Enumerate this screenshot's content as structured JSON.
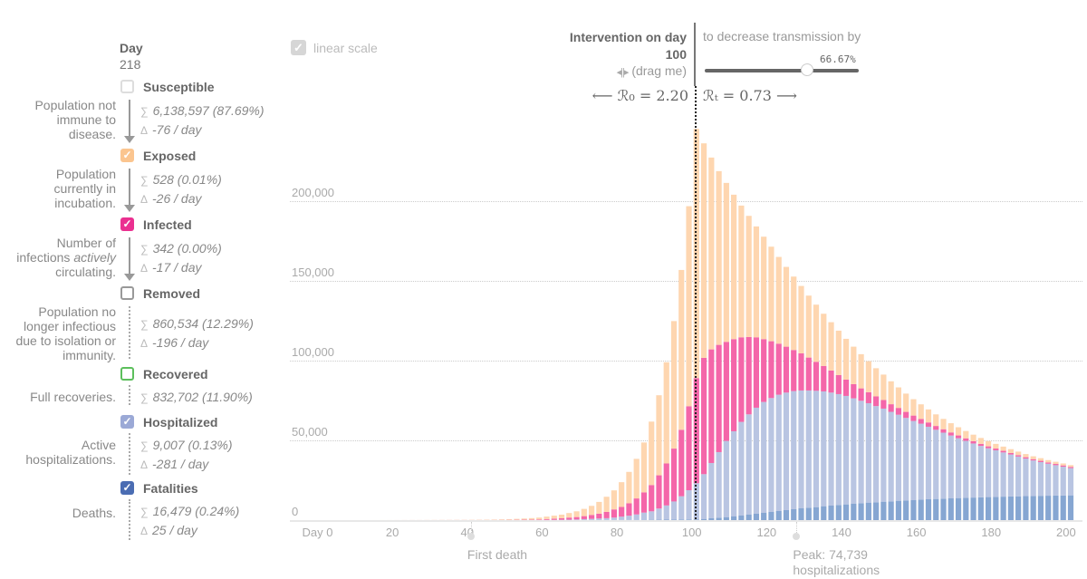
{
  "day": {
    "label": "Day",
    "value": "218"
  },
  "compartments": [
    {
      "name": "Susceptible",
      "checked": false,
      "color": "#dddddd",
      "desc": [
        "Population not",
        "immune to",
        "disease."
      ],
      "sum": "6,138,597 (87.69%)",
      "delta": "-76 / day"
    },
    {
      "name": "Exposed",
      "checked": true,
      "color": "#fbc58f",
      "desc": [
        "Population",
        "currently in",
        "incubation."
      ],
      "sum": "528 (0.01%)",
      "delta": "-26 / day"
    },
    {
      "name": "Infected",
      "checked": true,
      "color": "#ea3090",
      "desc_pre": "infections ",
      "desc_em": "actively",
      "desc": [
        "Number of",
        "",
        "circulating."
      ],
      "sum": "342 (0.00%)",
      "delta": "-17 / day"
    },
    {
      "name": "Removed",
      "checked": false,
      "color": "#999999",
      "desc": [
        "Population no",
        "longer infectious",
        "due to isolation or",
        "immunity."
      ],
      "sum": "860,534 (12.29%)",
      "delta": "-196 / day"
    },
    {
      "name": "Recovered",
      "checked": false,
      "color": "#5cbf5c",
      "desc": [
        "Full recoveries."
      ],
      "sum": "832,702 (11.90%)"
    },
    {
      "name": "Hospitalized",
      "checked": true,
      "color": "#9ba9d6",
      "desc": [
        "Active",
        "hospitalizations."
      ],
      "sum": "9,007 (0.13%)",
      "delta": "-281 / day"
    },
    {
      "name": "Fatalities",
      "checked": true,
      "color": "#4b6db3",
      "desc": [
        "Deaths."
      ],
      "sum": "16,479 (0.24%)",
      "delta": "25 / day"
    }
  ],
  "symbols": {
    "sum": "∑",
    "delta": "Δ",
    "check": "✓"
  },
  "scale_toggle": {
    "label": "linear scale",
    "checked": true
  },
  "intervention": {
    "title": "Intervention on day",
    "day": "100",
    "drag_hint": "(drag me)",
    "decrease_label": "to decrease transmission by",
    "decrease_value": "66.67%",
    "decrease_fraction": 0.6667,
    "r0_text": "⟵ ℛ₀ = 2.20",
    "rt_text": "ℛₜ = 0.73 ⟶"
  },
  "annotations": {
    "first_death": {
      "day": 41,
      "text": "First death"
    },
    "peak": {
      "day": 128,
      "line1": "Peak: 74,739",
      "line2": "hospitalizations"
    }
  },
  "chart_data": {
    "type": "bar",
    "stacked": true,
    "xlabel": "",
    "ylabel": "",
    "x_tick_labels": [
      "Day 0",
      "20",
      "40",
      "60",
      "80",
      "100",
      "120",
      "140",
      "160",
      "180",
      "200"
    ],
    "x_ticks": [
      0,
      20,
      40,
      60,
      80,
      100,
      120,
      140,
      160,
      180,
      200
    ],
    "y_tick_labels": [
      "0",
      "50,000",
      "100,000",
      "150,000",
      "200,000"
    ],
    "y_ticks": [
      0,
      50000,
      100000,
      150000,
      200000
    ],
    "xlim": [
      0,
      200
    ],
    "ylim": [
      0,
      250000
    ],
    "grid": true,
    "x": [
      0,
      2,
      4,
      6,
      8,
      10,
      12,
      14,
      16,
      18,
      20,
      22,
      24,
      26,
      28,
      30,
      32,
      34,
      36,
      38,
      40,
      42,
      44,
      46,
      48,
      50,
      52,
      54,
      56,
      58,
      60,
      62,
      64,
      66,
      68,
      70,
      72,
      74,
      76,
      78,
      80,
      82,
      84,
      86,
      88,
      90,
      92,
      94,
      96,
      98,
      100,
      102,
      104,
      106,
      108,
      110,
      112,
      114,
      116,
      118,
      120,
      122,
      124,
      126,
      128,
      130,
      132,
      134,
      136,
      138,
      140,
      142,
      144,
      146,
      148,
      150,
      152,
      154,
      156,
      158,
      160,
      162,
      164,
      166,
      168,
      170,
      172,
      174,
      176,
      178,
      180,
      182,
      184,
      186,
      188,
      190,
      192,
      194,
      196,
      198,
      200
    ],
    "series": [
      {
        "name": "Fatalities",
        "color": "#86a6d2",
        "values": [
          0,
          0,
          0,
          0,
          0,
          0,
          0,
          0,
          0,
          0,
          0,
          0,
          0,
          0,
          0,
          0,
          0,
          0,
          0,
          0,
          1,
          1,
          1,
          2,
          2,
          3,
          3,
          4,
          5,
          6,
          8,
          10,
          13,
          17,
          22,
          28,
          36,
          46,
          58,
          72,
          90,
          110,
          135,
          165,
          200,
          240,
          280,
          320,
          360,
          370,
          380,
          760,
          1140,
          1520,
          1900,
          2470,
          2850,
          3420,
          3990,
          4560,
          5130,
          5700,
          6270,
          6840,
          7410,
          7790,
          8170,
          8740,
          9120,
          9500,
          9880,
          10260,
          10640,
          11020,
          11210,
          11590,
          11780,
          12160,
          12350,
          12540,
          12920,
          13110,
          13300,
          13490,
          13680,
          13870,
          14030,
          14180,
          14330,
          14480,
          14630,
          14750,
          14860,
          14970,
          15080,
          15200,
          15280,
          15350,
          15430,
          15500,
          15580
        ]
      },
      {
        "name": "Hospitalized",
        "color": "#b9c5e2",
        "values": [
          0,
          0,
          0,
          0,
          0,
          0,
          0,
          0,
          1,
          1,
          1,
          2,
          2,
          3,
          3,
          4,
          5,
          6,
          7,
          8,
          9,
          10,
          12,
          14,
          16,
          20,
          26,
          34,
          45,
          60,
          95,
          130,
          190,
          260,
          380,
          570,
          760,
          950,
          1140,
          1520,
          2090,
          2660,
          3420,
          4560,
          5320,
          7030,
          8930,
          11400,
          14630,
          18430,
          22800,
          28120,
          34770,
          41230,
          47880,
          53390,
          58900,
          63080,
          66690,
          69730,
          71630,
          73150,
          73910,
          74290,
          74100,
          73720,
          73150,
          72200,
          71060,
          69730,
          68210,
          66310,
          64400,
          62500,
          60500,
          58520,
          56300,
          54100,
          51900,
          49800,
          47690,
          45600,
          43500,
          41500,
          39500,
          37620,
          35800,
          34000,
          32300,
          30700,
          29260,
          27800,
          26400,
          25000,
          23600,
          22300,
          21200,
          20100,
          19100,
          18100,
          17100
        ]
      },
      {
        "name": "Infected",
        "color": "#f466a9",
        "values": [
          0,
          0,
          1,
          1,
          1,
          2,
          2,
          3,
          4,
          5,
          6,
          8,
          10,
          12,
          15,
          18,
          22,
          27,
          33,
          38,
          40,
          50,
          65,
          85,
          110,
          140,
          180,
          230,
          300,
          380,
          570,
          760,
          950,
          1330,
          1520,
          1900,
          2470,
          3040,
          3990,
          5130,
          6080,
          7790,
          10070,
          12730,
          16530,
          20900,
          26410,
          33250,
          41800,
          52820,
          66120,
          73150,
          71440,
          67450,
          62320,
          57950,
          53200,
          48640,
          44270,
          39520,
          35720,
          32110,
          28880,
          25840,
          23370,
          20710,
          18240,
          15960,
          13870,
          11970,
          10260,
          8930,
          7800,
          6900,
          6100,
          5400,
          4800,
          4300,
          3800,
          3400,
          3000,
          2700,
          2400,
          2150,
          1950,
          1750,
          1600,
          1450,
          1320,
          1200,
          1100,
          1020,
          950,
          900,
          860,
          830,
          810,
          790,
          780,
          770,
          760
        ]
      },
      {
        "name": "Exposed",
        "color": "#fed6b0",
        "values": [
          1,
          2,
          3,
          4,
          5,
          7,
          9,
          12,
          15,
          19,
          24,
          30,
          37,
          45,
          55,
          65,
          78,
          92,
          110,
          120,
          130,
          170,
          220,
          280,
          360,
          450,
          570,
          720,
          900,
          1140,
          1520,
          1900,
          2280,
          2850,
          3610,
          4560,
          5700,
          7410,
          9500,
          11970,
          15580,
          19760,
          24890,
          31350,
          39900,
          50350,
          63650,
          80180,
          100510,
          125780,
          156750,
          134900,
          120650,
          109250,
          99940,
          90820,
          82840,
          76190,
          69730,
          64410,
          59470,
          54530,
          50160,
          46170,
          42370,
          38950,
          35910,
          32870,
          30400,
          27930,
          25650,
          23560,
          21500,
          19500,
          17700,
          16000,
          14400,
          12900,
          11500,
          10300,
          9200,
          8200,
          7300,
          6500,
          5800,
          5150,
          4600,
          4100,
          3700,
          3300,
          2950,
          2650,
          2400,
          2200,
          2000,
          1800,
          1650,
          1500,
          1380,
          1260,
          1140
        ]
      }
    ]
  }
}
